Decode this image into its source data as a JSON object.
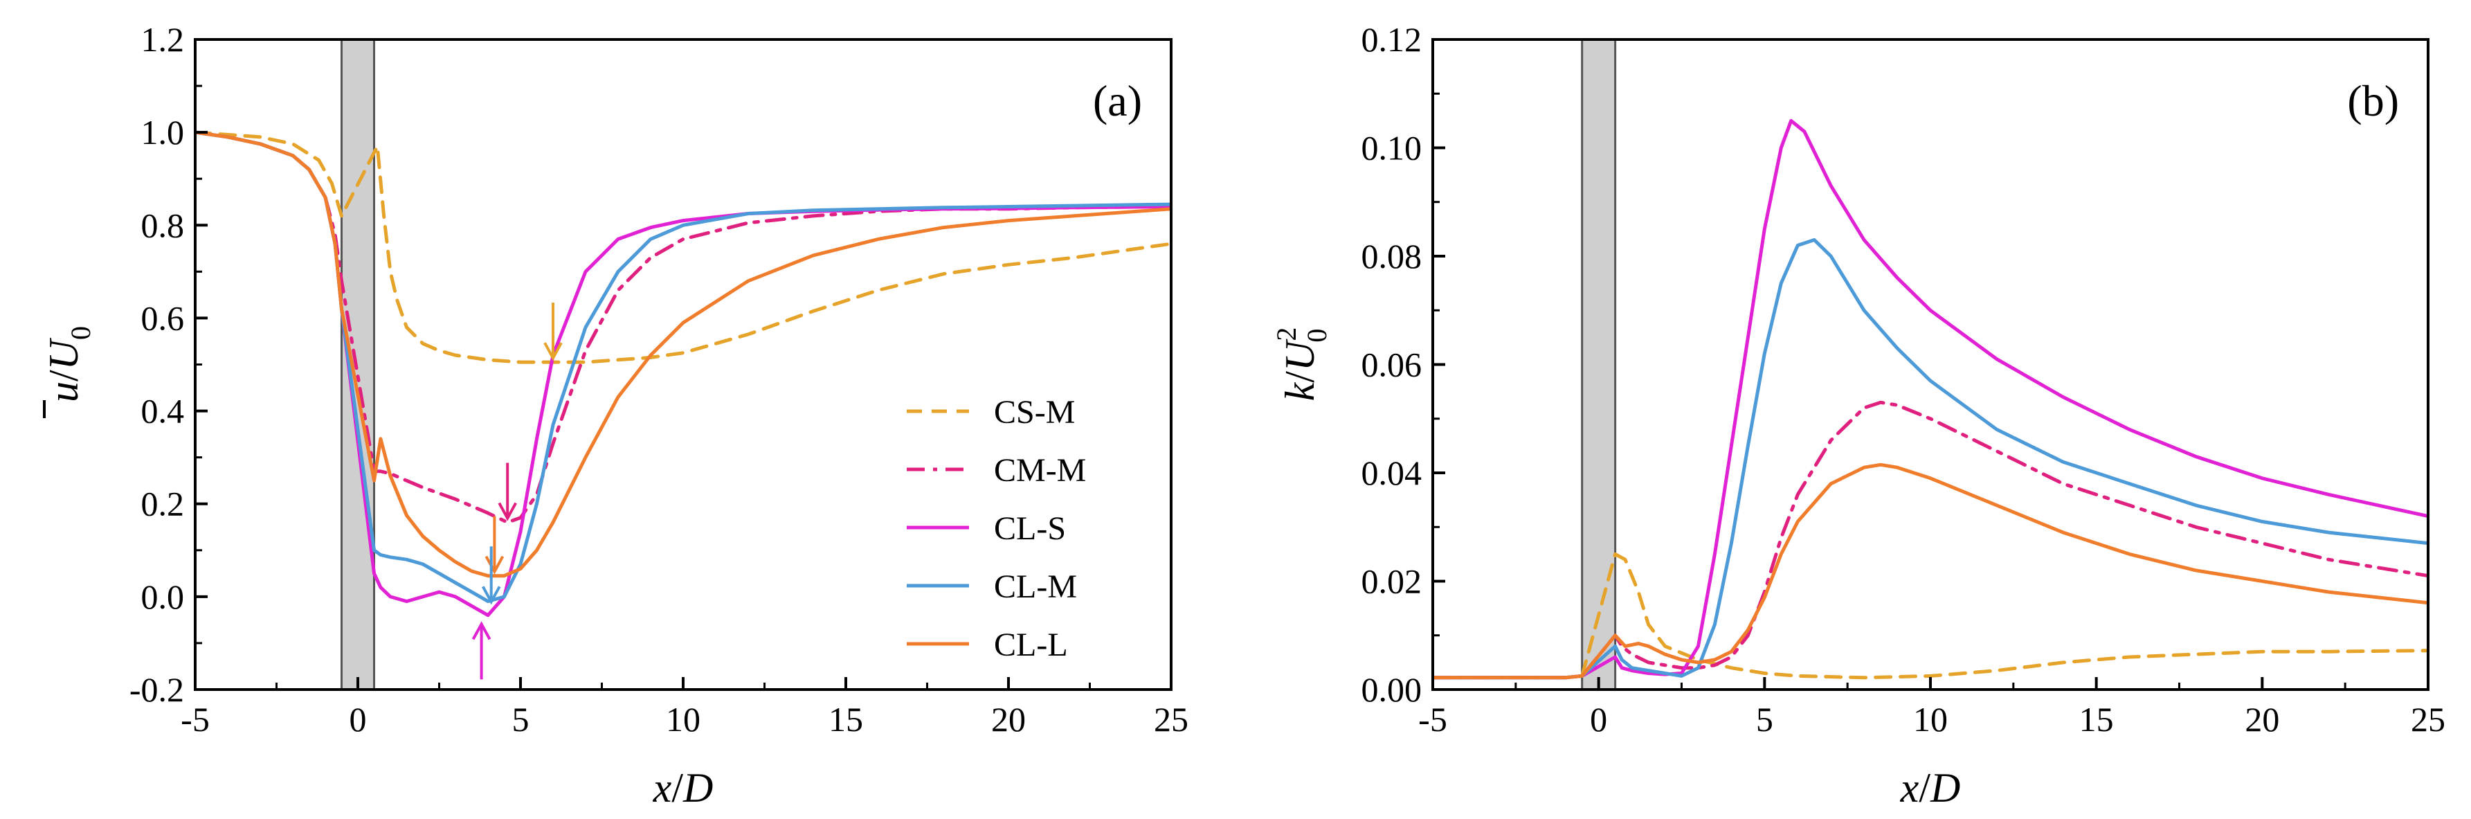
{
  "figure": {
    "shaded_region": {
      "x_range": [
        -0.5,
        0.5
      ]
    }
  },
  "chart_data": [
    {
      "type": "line",
      "panel_label": "(a)",
      "xlabel": "x/D",
      "ylabel": "u̅/U0",
      "ylabel_parts": {
        "var": "u",
        "denom": "U",
        "sub": "0"
      },
      "xlim": [
        -5,
        25
      ],
      "ylim": [
        -0.2,
        1.2
      ],
      "xticks": [
        "-5",
        "0",
        "5",
        "10",
        "15",
        "20",
        "25"
      ],
      "yticks": [
        "-0.2",
        "0.0",
        "0.2",
        "0.4",
        "0.6",
        "0.8",
        "1.0",
        "1.2"
      ],
      "legend": {
        "placement": "right-middle",
        "entries": [
          "CS-M",
          "CM-M",
          "CL-S",
          "CL-M",
          "CL-L"
        ]
      },
      "series": [
        {
          "name": "CS-M",
          "color": "#E5A32A",
          "dash": "dashed",
          "x": [
            -5,
            -4,
            -3,
            -2,
            -1.2,
            -0.8,
            -0.5,
            0.6,
            0.8,
            1.0,
            1.2,
            1.5,
            2,
            2.5,
            3,
            4,
            5,
            6,
            7,
            8,
            9,
            10,
            12,
            14,
            16,
            18,
            20,
            22,
            25
          ],
          "y": [
            1.0,
            0.995,
            0.99,
            0.975,
            0.94,
            0.89,
            0.82,
            0.97,
            0.82,
            0.7,
            0.64,
            0.58,
            0.545,
            0.53,
            0.52,
            0.51,
            0.505,
            0.505,
            0.505,
            0.51,
            0.515,
            0.525,
            0.565,
            0.615,
            0.66,
            0.695,
            0.715,
            0.73,
            0.76
          ]
        },
        {
          "name": "CM-M",
          "color": "#E0207F",
          "dash": "dashdot",
          "x": [
            -5,
            -4,
            -3,
            -2,
            -1.5,
            -1,
            -0.7,
            -0.5,
            0.5,
            0.7,
            1,
            1.5,
            2,
            3,
            4,
            4.6,
            5,
            5.5,
            6,
            7,
            8,
            9,
            10,
            12,
            14,
            16,
            18,
            20,
            22,
            25
          ],
          "y": [
            1.0,
            0.99,
            0.975,
            0.95,
            0.92,
            0.86,
            0.78,
            0.68,
            0.27,
            0.27,
            0.265,
            0.25,
            0.235,
            0.21,
            0.18,
            0.16,
            0.17,
            0.22,
            0.33,
            0.53,
            0.66,
            0.73,
            0.77,
            0.805,
            0.82,
            0.83,
            0.835,
            0.835,
            0.838,
            0.84
          ]
        },
        {
          "name": "CL-S",
          "color": "#E021D4",
          "dash": "solid",
          "x": [
            -5,
            -4,
            -3,
            -2,
            -1.5,
            -1,
            -0.7,
            -0.5,
            0.5,
            0.7,
            1,
            1.5,
            2,
            2.5,
            3,
            3.5,
            4,
            4.5,
            5,
            5.5,
            6,
            7,
            8,
            9,
            10,
            12,
            14,
            16,
            18,
            20,
            22,
            25
          ],
          "y": [
            1.0,
            0.99,
            0.975,
            0.95,
            0.92,
            0.86,
            0.76,
            0.62,
            0.05,
            0.02,
            0.0,
            -0.01,
            0.0,
            0.01,
            0.0,
            -0.02,
            -0.04,
            0.0,
            0.14,
            0.34,
            0.52,
            0.7,
            0.77,
            0.795,
            0.81,
            0.825,
            0.83,
            0.833,
            0.835,
            0.836,
            0.838,
            0.84
          ]
        },
        {
          "name": "CL-M",
          "color": "#4D9AD8",
          "dash": "solid",
          "x": [
            -5,
            -4,
            -3,
            -2,
            -1.5,
            -1,
            -0.7,
            -0.5,
            0.5,
            0.7,
            1,
            1.5,
            2,
            2.5,
            3,
            3.5,
            4,
            4.5,
            5,
            5.5,
            6,
            7,
            8,
            9,
            10,
            12,
            14,
            16,
            18,
            20,
            22,
            25
          ],
          "y": [
            1.0,
            0.99,
            0.975,
            0.95,
            0.92,
            0.86,
            0.76,
            0.62,
            0.1,
            0.09,
            0.085,
            0.08,
            0.07,
            0.05,
            0.03,
            0.01,
            -0.01,
            0.0,
            0.07,
            0.2,
            0.37,
            0.58,
            0.7,
            0.77,
            0.8,
            0.825,
            0.832,
            0.835,
            0.838,
            0.84,
            0.842,
            0.845
          ]
        },
        {
          "name": "CL-L",
          "color": "#F07D2C",
          "dash": "solid",
          "x": [
            -5,
            -4,
            -3,
            -2,
            -1.5,
            -1,
            -0.7,
            -0.5,
            0.5,
            0.7,
            1,
            1.5,
            2,
            2.5,
            3,
            3.5,
            4,
            4.5,
            5,
            5.5,
            6,
            7,
            8,
            9,
            10,
            12,
            14,
            16,
            18,
            20,
            22,
            25
          ],
          "y": [
            1.0,
            0.99,
            0.975,
            0.95,
            0.92,
            0.86,
            0.76,
            0.62,
            0.25,
            0.34,
            0.26,
            0.175,
            0.13,
            0.1,
            0.075,
            0.055,
            0.045,
            0.045,
            0.06,
            0.1,
            0.16,
            0.3,
            0.43,
            0.52,
            0.59,
            0.68,
            0.735,
            0.77,
            0.795,
            0.81,
            0.82,
            0.835
          ]
        }
      ],
      "annotations": [
        {
          "type": "arrow",
          "color": "#E5A32A",
          "x": 6.0,
          "y": 0.505
        },
        {
          "type": "arrow",
          "color": "#E0207F",
          "x": 4.6,
          "y": 0.16
        },
        {
          "type": "arrow",
          "color": "#F07D2C",
          "x": 4.2,
          "y": 0.045
        },
        {
          "type": "arrow",
          "color": "#4D9AD8",
          "x": 4.1,
          "y": -0.02
        },
        {
          "type": "arrow",
          "color": "#E021D4",
          "x": 3.8,
          "y": -0.05,
          "direction": "up"
        }
      ]
    },
    {
      "type": "line",
      "panel_label": "(b)",
      "xlabel": "x/D",
      "ylabel": "k/U0²",
      "ylabel_parts": {
        "var": "k",
        "denom": "U",
        "sub": "0",
        "sup": "2"
      },
      "xlim": [
        -5,
        25
      ],
      "ylim": [
        0,
        0.12
      ],
      "xticks": [
        "-5",
        "0",
        "5",
        "10",
        "15",
        "20",
        "25"
      ],
      "yticks": [
        "0.00",
        "0.02",
        "0.04",
        "0.06",
        "0.08",
        "0.10",
        "0.12"
      ],
      "series": [
        {
          "name": "CS-M",
          "color": "#E5A32A",
          "dash": "dashed",
          "x": [
            -5,
            -3,
            -1,
            -0.5,
            0.5,
            0.8,
            1.2,
            1.5,
            2,
            3,
            4,
            5,
            6,
            8,
            10,
            12,
            14,
            16,
            18,
            20,
            22,
            25
          ],
          "y": [
            0.0022,
            0.0022,
            0.0022,
            0.0025,
            0.025,
            0.024,
            0.018,
            0.012,
            0.008,
            0.0055,
            0.004,
            0.003,
            0.0025,
            0.0022,
            0.0025,
            0.0035,
            0.005,
            0.006,
            0.0065,
            0.007,
            0.007,
            0.0072
          ]
        },
        {
          "name": "CM-M",
          "color": "#E0207F",
          "dash": "dashdot",
          "x": [
            -5,
            -3,
            -1,
            -0.5,
            0.5,
            0.7,
            1,
            1.5,
            2,
            2.5,
            3,
            3.5,
            4,
            4.5,
            5,
            5.5,
            6,
            7,
            8,
            8.5,
            9,
            10,
            12,
            14,
            16,
            18,
            20,
            22,
            25
          ],
          "y": [
            0.0022,
            0.0022,
            0.0022,
            0.0025,
            0.01,
            0.008,
            0.0065,
            0.005,
            0.0045,
            0.004,
            0.004,
            0.0045,
            0.006,
            0.01,
            0.018,
            0.028,
            0.036,
            0.046,
            0.052,
            0.053,
            0.0525,
            0.05,
            0.044,
            0.038,
            0.034,
            0.03,
            0.027,
            0.024,
            0.021
          ]
        },
        {
          "name": "CL-S",
          "color": "#E021D4",
          "dash": "solid",
          "x": [
            -5,
            -3,
            -1,
            -0.5,
            0.5,
            0.7,
            1,
            1.5,
            2,
            2.5,
            3,
            3.5,
            4,
            4.5,
            5,
            5.5,
            5.8,
            6.2,
            7,
            8,
            9,
            10,
            12,
            14,
            16,
            18,
            20,
            22,
            25
          ],
          "y": [
            0.0022,
            0.0022,
            0.0022,
            0.0025,
            0.006,
            0.004,
            0.0035,
            0.003,
            0.0028,
            0.003,
            0.008,
            0.025,
            0.045,
            0.065,
            0.085,
            0.1,
            0.105,
            0.103,
            0.093,
            0.083,
            0.076,
            0.07,
            0.061,
            0.054,
            0.048,
            0.043,
            0.039,
            0.036,
            0.032
          ]
        },
        {
          "name": "CL-M",
          "color": "#4D9AD8",
          "dash": "solid",
          "x": [
            -5,
            -3,
            -1,
            -0.5,
            0.5,
            0.7,
            1,
            1.5,
            2,
            2.5,
            3,
            3.5,
            4,
            4.5,
            5,
            5.5,
            6,
            6.5,
            7,
            8,
            9,
            10,
            12,
            14,
            16,
            18,
            20,
            22,
            25
          ],
          "y": [
            0.0022,
            0.0022,
            0.0022,
            0.0025,
            0.008,
            0.0055,
            0.004,
            0.0035,
            0.003,
            0.0025,
            0.004,
            0.012,
            0.027,
            0.045,
            0.062,
            0.075,
            0.082,
            0.083,
            0.08,
            0.07,
            0.063,
            0.057,
            0.048,
            0.042,
            0.038,
            0.034,
            0.031,
            0.029,
            0.027
          ]
        },
        {
          "name": "CL-L",
          "color": "#F07D2C",
          "dash": "solid",
          "x": [
            -5,
            -3,
            -1,
            -0.5,
            0.5,
            0.8,
            1.2,
            1.5,
            2,
            2.5,
            3,
            3.5,
            4,
            4.5,
            5,
            5.5,
            6,
            7,
            8,
            8.5,
            9,
            10,
            12,
            14,
            16,
            18,
            20,
            22,
            25
          ],
          "y": [
            0.0022,
            0.0022,
            0.0022,
            0.0025,
            0.01,
            0.008,
            0.0085,
            0.008,
            0.0065,
            0.0055,
            0.005,
            0.0055,
            0.007,
            0.011,
            0.017,
            0.025,
            0.031,
            0.038,
            0.041,
            0.0415,
            0.041,
            0.039,
            0.034,
            0.029,
            0.025,
            0.022,
            0.02,
            0.018,
            0.016
          ]
        }
      ]
    }
  ]
}
